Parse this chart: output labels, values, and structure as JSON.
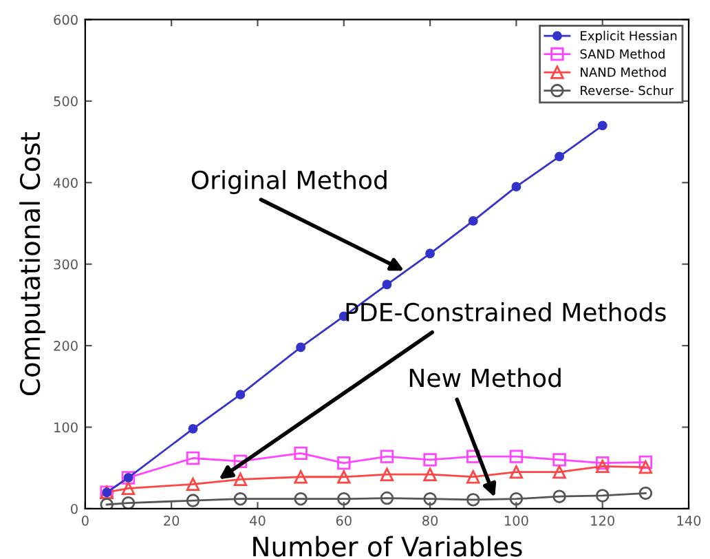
{
  "chart_data": {
    "type": "line",
    "xlabel": "Number of Variables",
    "ylabel": "Computational Cost",
    "x": [
      5,
      10,
      25,
      36,
      50,
      60,
      70,
      80,
      90,
      100,
      110,
      120,
      130
    ],
    "series": [
      {
        "name": "Explicit Hessian",
        "color": "#3333cc",
        "marker": "circle",
        "values": [
          20,
          38,
          98,
          140,
          198,
          236,
          275,
          313,
          353,
          395,
          432,
          470,
          null
        ]
      },
      {
        "name": "SAND Method",
        "color": "#ff44ff",
        "marker": "square",
        "values": [
          20,
          38,
          62,
          58,
          68,
          56,
          64,
          60,
          64,
          64,
          60,
          56,
          57
        ]
      },
      {
        "name": "NAND Method",
        "color": "#ff4444",
        "marker": "triangle",
        "values": [
          20,
          25,
          30,
          36,
          39,
          39,
          42,
          42,
          39,
          45,
          45,
          52,
          51
        ]
      },
      {
        "name": "Reverse- Schur",
        "color": "#555555",
        "marker": "circle",
        "values": [
          5,
          7,
          10,
          12,
          12,
          12,
          13,
          12,
          11,
          12,
          15,
          16,
          19
        ]
      }
    ],
    "annotations": [
      {
        "text": "Original Method",
        "x": 74,
        "y": 292
      },
      {
        "text": "PDE-Constrained Methods",
        "x": 31,
        "y": 36
      },
      {
        "text": "New Method",
        "x": 95,
        "y": 14
      }
    ],
    "xlim": [
      0,
      140
    ],
    "xticks": [
      0,
      20,
      40,
      60,
      80,
      100,
      120,
      140
    ],
    "ylim": [
      0,
      600
    ],
    "yticks": [
      0,
      100,
      200,
      300,
      400,
      500,
      600
    ],
    "legend": "top right",
    "grid": false
  }
}
